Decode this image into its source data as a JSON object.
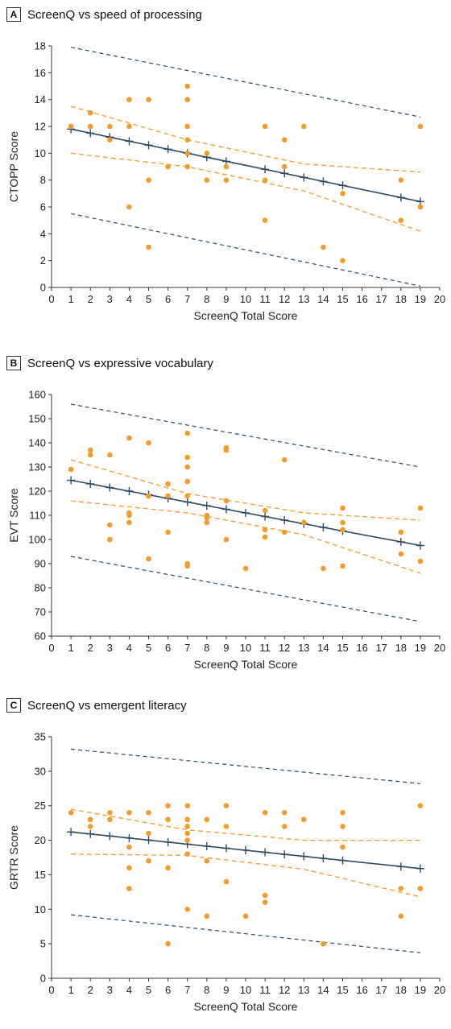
{
  "colors": {
    "scatter": "#F39B2B",
    "ci": "#F39B2B",
    "pi": "#2B4A63",
    "fit": "#2B4A63",
    "axis": "#333333"
  },
  "chart_data": [
    {
      "type": "scatter",
      "letter": "A",
      "title": "ScreenQ vs speed of processing",
      "xlabel": "ScreenQ Total Score",
      "ylabel": "CTOPP Score",
      "xlim": [
        0,
        20
      ],
      "ylim": [
        0,
        18
      ],
      "xticks": [
        "0",
        "1",
        "2",
        "3",
        "4",
        "5",
        "6",
        "7",
        "8",
        "9",
        "10",
        "11",
        "12",
        "13",
        "14",
        "15",
        "16",
        "17",
        "18",
        "19",
        "20"
      ],
      "yticks": [
        "0",
        "2",
        "4",
        "6",
        "8",
        "10",
        "12",
        "14",
        "16",
        "18"
      ],
      "points": [
        [
          1,
          12
        ],
        [
          2,
          13
        ],
        [
          2,
          12
        ],
        [
          3,
          12
        ],
        [
          3,
          11
        ],
        [
          4,
          14
        ],
        [
          4,
          12
        ],
        [
          4,
          6
        ],
        [
          5,
          14
        ],
        [
          5,
          8
        ],
        [
          5,
          3
        ],
        [
          6,
          9
        ],
        [
          7,
          15
        ],
        [
          7,
          14
        ],
        [
          7,
          12
        ],
        [
          7,
          11
        ],
        [
          7,
          10
        ],
        [
          7,
          9
        ],
        [
          8,
          10
        ],
        [
          8,
          8
        ],
        [
          9,
          9
        ],
        [
          9,
          8
        ],
        [
          11,
          12
        ],
        [
          11,
          8
        ],
        [
          11,
          5
        ],
        [
          12,
          11
        ],
        [
          12,
          9
        ],
        [
          13,
          12
        ],
        [
          14,
          3
        ],
        [
          15,
          7
        ],
        [
          15,
          2
        ],
        [
          18,
          8
        ],
        [
          18,
          5
        ],
        [
          19,
          12
        ],
        [
          19,
          6
        ]
      ],
      "fit": {
        "x": [
          1,
          19
        ],
        "y": [
          11.8,
          6.4
        ]
      },
      "fit_markers_x": [
        1,
        2,
        3,
        4,
        5,
        6,
        7,
        8,
        9,
        11,
        12,
        13,
        14,
        15,
        18,
        19
      ],
      "ci_upper": {
        "x": [
          1,
          7,
          13,
          19
        ],
        "y": [
          13.5,
          11.0,
          9.2,
          8.6
        ]
      },
      "ci_lower": {
        "x": [
          1,
          7,
          13,
          19
        ],
        "y": [
          10.0,
          9.0,
          7.2,
          4.2
        ]
      },
      "pi_upper": {
        "x": [
          1,
          19
        ],
        "y": [
          17.9,
          12.7
        ]
      },
      "pi_lower": {
        "x": [
          1,
          19
        ],
        "y": [
          5.5,
          0.1
        ]
      }
    },
    {
      "type": "scatter",
      "letter": "B",
      "title": "ScreenQ vs expressive vocabulary",
      "xlabel": "ScreenQ Total Score",
      "ylabel": "EVT Score",
      "xlim": [
        0,
        20
      ],
      "ylim": [
        60,
        160
      ],
      "xticks": [
        "0",
        "1",
        "2",
        "3",
        "4",
        "5",
        "6",
        "7",
        "8",
        "9",
        "10",
        "11",
        "12",
        "13",
        "14",
        "15",
        "16",
        "17",
        "18",
        "19",
        "20"
      ],
      "yticks": [
        "60",
        "70",
        "80",
        "90",
        "100",
        "110",
        "120",
        "130",
        "140",
        "150",
        "160"
      ],
      "points": [
        [
          1,
          129
        ],
        [
          2,
          137
        ],
        [
          2,
          135
        ],
        [
          3,
          135
        ],
        [
          3,
          106
        ],
        [
          3,
          100
        ],
        [
          4,
          142
        ],
        [
          4,
          111
        ],
        [
          4,
          110
        ],
        [
          4,
          107
        ],
        [
          5,
          140
        ],
        [
          5,
          118
        ],
        [
          5,
          92
        ],
        [
          6,
          123
        ],
        [
          6,
          118
        ],
        [
          6,
          103
        ],
        [
          7,
          144
        ],
        [
          7,
          134
        ],
        [
          7,
          130
        ],
        [
          7,
          124
        ],
        [
          7,
          118
        ],
        [
          7,
          90
        ],
        [
          7,
          89
        ],
        [
          8,
          110
        ],
        [
          8,
          109
        ],
        [
          8,
          107
        ],
        [
          9,
          138
        ],
        [
          9,
          137
        ],
        [
          9,
          116
        ],
        [
          9,
          100
        ],
        [
          10,
          88
        ],
        [
          11,
          112
        ],
        [
          11,
          104
        ],
        [
          11,
          101
        ],
        [
          12,
          133
        ],
        [
          12,
          103
        ],
        [
          13,
          107
        ],
        [
          14,
          88
        ],
        [
          15,
          113
        ],
        [
          15,
          107
        ],
        [
          15,
          104
        ],
        [
          15,
          89
        ],
        [
          18,
          103
        ],
        [
          18,
          94
        ],
        [
          19,
          113
        ],
        [
          19,
          91
        ]
      ],
      "fit": {
        "x": [
          1,
          19
        ],
        "y": [
          124.5,
          97.5
        ]
      },
      "fit_markers_x": [
        1,
        2,
        3,
        4,
        5,
        6,
        7,
        8,
        9,
        10,
        11,
        12,
        13,
        14,
        15,
        18,
        19
      ],
      "ci_upper": {
        "x": [
          1,
          7,
          13,
          19
        ],
        "y": [
          133,
          119,
          111,
          108
        ]
      },
      "ci_lower": {
        "x": [
          1,
          7,
          13,
          19
        ],
        "y": [
          116,
          111,
          102,
          86
        ]
      },
      "pi_upper": {
        "x": [
          1,
          19
        ],
        "y": [
          156,
          130
        ]
      },
      "pi_lower": {
        "x": [
          1,
          19
        ],
        "y": [
          93,
          66
        ]
      }
    },
    {
      "type": "scatter",
      "letter": "C",
      "title": "ScreenQ vs emergent literacy",
      "xlabel": "ScreenQ Total Score",
      "ylabel": "GRTR Score",
      "xlim": [
        0,
        20
      ],
      "ylim": [
        0,
        35
      ],
      "xticks": [
        "0",
        "1",
        "2",
        "3",
        "4",
        "5",
        "6",
        "7",
        "8",
        "9",
        "10",
        "11",
        "12",
        "13",
        "14",
        "15",
        "16",
        "17",
        "18",
        "19",
        "20"
      ],
      "yticks": [
        "0",
        "5",
        "10",
        "15",
        "20",
        "25",
        "30",
        "35"
      ],
      "points": [
        [
          1,
          24
        ],
        [
          2,
          23
        ],
        [
          2,
          22
        ],
        [
          3,
          24
        ],
        [
          3,
          23
        ],
        [
          4,
          24
        ],
        [
          4,
          19
        ],
        [
          4,
          16
        ],
        [
          4,
          13
        ],
        [
          5,
          24
        ],
        [
          5,
          21
        ],
        [
          5,
          17
        ],
        [
          6,
          25
        ],
        [
          6,
          23
        ],
        [
          6,
          16
        ],
        [
          6,
          5
        ],
        [
          7,
          25
        ],
        [
          7,
          23
        ],
        [
          7,
          22
        ],
        [
          7,
          21
        ],
        [
          7,
          20
        ],
        [
          7,
          18
        ],
        [
          7,
          10
        ],
        [
          8,
          23
        ],
        [
          8,
          17
        ],
        [
          8,
          9
        ],
        [
          9,
          25
        ],
        [
          9,
          22
        ],
        [
          9,
          14
        ],
        [
          10,
          9
        ],
        [
          11,
          24
        ],
        [
          11,
          12
        ],
        [
          11,
          11
        ],
        [
          12,
          24
        ],
        [
          12,
          22
        ],
        [
          13,
          23
        ],
        [
          14,
          5
        ],
        [
          15,
          24
        ],
        [
          15,
          22
        ],
        [
          15,
          19
        ],
        [
          18,
          13
        ],
        [
          18,
          9
        ],
        [
          19,
          25
        ],
        [
          19,
          13
        ]
      ],
      "fit": {
        "x": [
          1,
          19
        ],
        "y": [
          21.2,
          15.9
        ]
      },
      "fit_markers_x": [
        1,
        2,
        3,
        4,
        5,
        6,
        7,
        8,
        9,
        10,
        11,
        12,
        13,
        14,
        15,
        18,
        19
      ],
      "ci_upper": {
        "x": [
          1,
          7,
          13,
          19
        ],
        "y": [
          24.5,
          21.5,
          20.0,
          20.0
        ]
      },
      "ci_lower": {
        "x": [
          1,
          7,
          13,
          19
        ],
        "y": [
          18.0,
          17.8,
          15.8,
          11.8
        ]
      },
      "pi_upper": {
        "x": [
          1,
          19
        ],
        "y": [
          33.2,
          28.2
        ]
      },
      "pi_lower": {
        "x": [
          1,
          19
        ],
        "y": [
          9.2,
          3.7
        ]
      }
    }
  ]
}
